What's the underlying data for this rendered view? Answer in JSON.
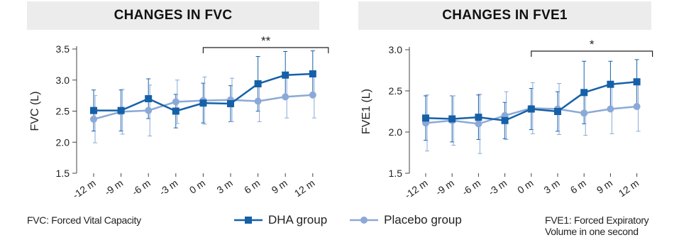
{
  "colors": {
    "dha": "#1660a8",
    "placebo": "#8ba9d8",
    "axis": "#444444",
    "band": "#ececec"
  },
  "legend": {
    "dha_label": "DHA group",
    "placebo_label": "Placebo group"
  },
  "footnotes": {
    "left": "FVC: Forced Vital Capacity",
    "right_line1": "FVE1: Forced Expiratory",
    "right_line2": "Volume in one second"
  },
  "chart_data": [
    {
      "type": "line",
      "title": "CHANGES IN FVC",
      "ylabel": "FVC (L)",
      "xlabel": "",
      "categories": [
        "-12 m",
        "-9 m",
        "-6 m",
        "-3 m",
        "0 m",
        "3 m",
        "6 m",
        "9 m",
        "12 m"
      ],
      "ylim": [
        1.5,
        3.5
      ],
      "yticks": [
        "1.5",
        "2.0",
        "2.5",
        "3.0",
        "3.5"
      ],
      "series": [
        {
          "name": "DHA group",
          "marker": "square",
          "values": [
            2.51,
            2.51,
            2.7,
            2.5,
            2.63,
            2.62,
            2.94,
            3.08,
            3.1
          ],
          "err": [
            0.33,
            0.33,
            0.32,
            0.27,
            0.32,
            0.29,
            0.44,
            0.38,
            0.37
          ]
        },
        {
          "name": "Placebo group",
          "marker": "circle",
          "values": [
            2.37,
            2.49,
            2.51,
            2.65,
            2.67,
            2.68,
            2.66,
            2.73,
            2.76
          ],
          "err": [
            0.38,
            0.36,
            0.41,
            0.35,
            0.38,
            0.35,
            0.33,
            0.34,
            0.37
          ]
        }
      ],
      "annotation": {
        "text": "**",
        "from": "0 m",
        "to": "12 m"
      }
    },
    {
      "type": "line",
      "title": "CHANGES IN FVE1",
      "ylabel": "FVE1 (L)",
      "xlabel": "",
      "categories": [
        "-12 m",
        "-9 m",
        "-6 m",
        "-3 m",
        "0 m",
        "3 m",
        "6 m",
        "9 m",
        "12 m"
      ],
      "ylim": [
        1.5,
        3.0
      ],
      "yticks": [
        "1.5",
        "2.0",
        "2.5",
        "3.0"
      ],
      "series": [
        {
          "name": "DHA group",
          "marker": "square",
          "values": [
            2.17,
            2.16,
            2.18,
            2.14,
            2.28,
            2.25,
            2.48,
            2.58,
            2.61
          ],
          "err": [
            0.27,
            0.28,
            0.27,
            0.22,
            0.25,
            0.24,
            0.38,
            0.28,
            0.27
          ]
        },
        {
          "name": "Placebo group",
          "marker": "circle",
          "values": [
            2.11,
            2.14,
            2.1,
            2.2,
            2.29,
            2.28,
            2.23,
            2.28,
            2.31
          ],
          "err": [
            0.34,
            0.3,
            0.36,
            0.29,
            0.31,
            0.31,
            0.27,
            0.3,
            0.3
          ]
        }
      ],
      "annotation": {
        "text": "*",
        "from": "0 m",
        "to": "12 m"
      }
    }
  ]
}
